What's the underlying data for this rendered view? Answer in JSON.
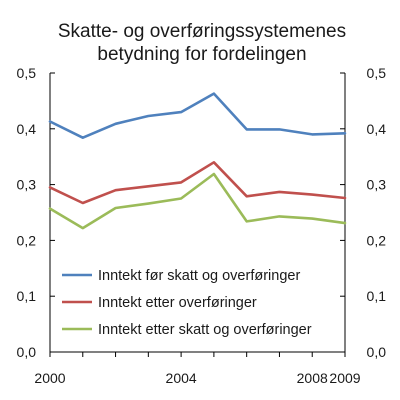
{
  "chart_data": {
    "type": "line",
    "title": "Skatte- og overføringssystemenes betydning for fordelingen",
    "title_lines": [
      "Skatte- og overføringssystemenes",
      "betydning for fordelingen"
    ],
    "xlabel": "",
    "ylabel": "",
    "x": [
      2000,
      2001,
      2002,
      2003,
      2004,
      2005,
      2006,
      2007,
      2008,
      2009
    ],
    "x_ticks": [
      "2000",
      "2004",
      "2008",
      "2009"
    ],
    "y_ticks": [
      "0,0",
      "0,1",
      "0,2",
      "0,3",
      "0,4",
      "0,5"
    ],
    "ylim": [
      0,
      0.5
    ],
    "grid": false,
    "legend_position": "lower-left",
    "series": [
      {
        "name": "Inntekt før skatt og overføringer",
        "color": "#4f81bd",
        "values": [
          0.413,
          0.384,
          0.409,
          0.423,
          0.43,
          0.463,
          0.399,
          0.399,
          0.39,
          0.392
        ]
      },
      {
        "name": "Inntekt etter overføringer",
        "color": "#c0504d",
        "values": [
          0.295,
          0.267,
          0.29,
          0.297,
          0.304,
          0.34,
          0.279,
          0.287,
          0.282,
          0.276
        ]
      },
      {
        "name": "Inntekt etter skatt og overføringer",
        "color": "#9bbb59",
        "values": [
          0.257,
          0.222,
          0.258,
          0.266,
          0.275,
          0.319,
          0.234,
          0.243,
          0.239,
          0.231
        ]
      }
    ]
  }
}
